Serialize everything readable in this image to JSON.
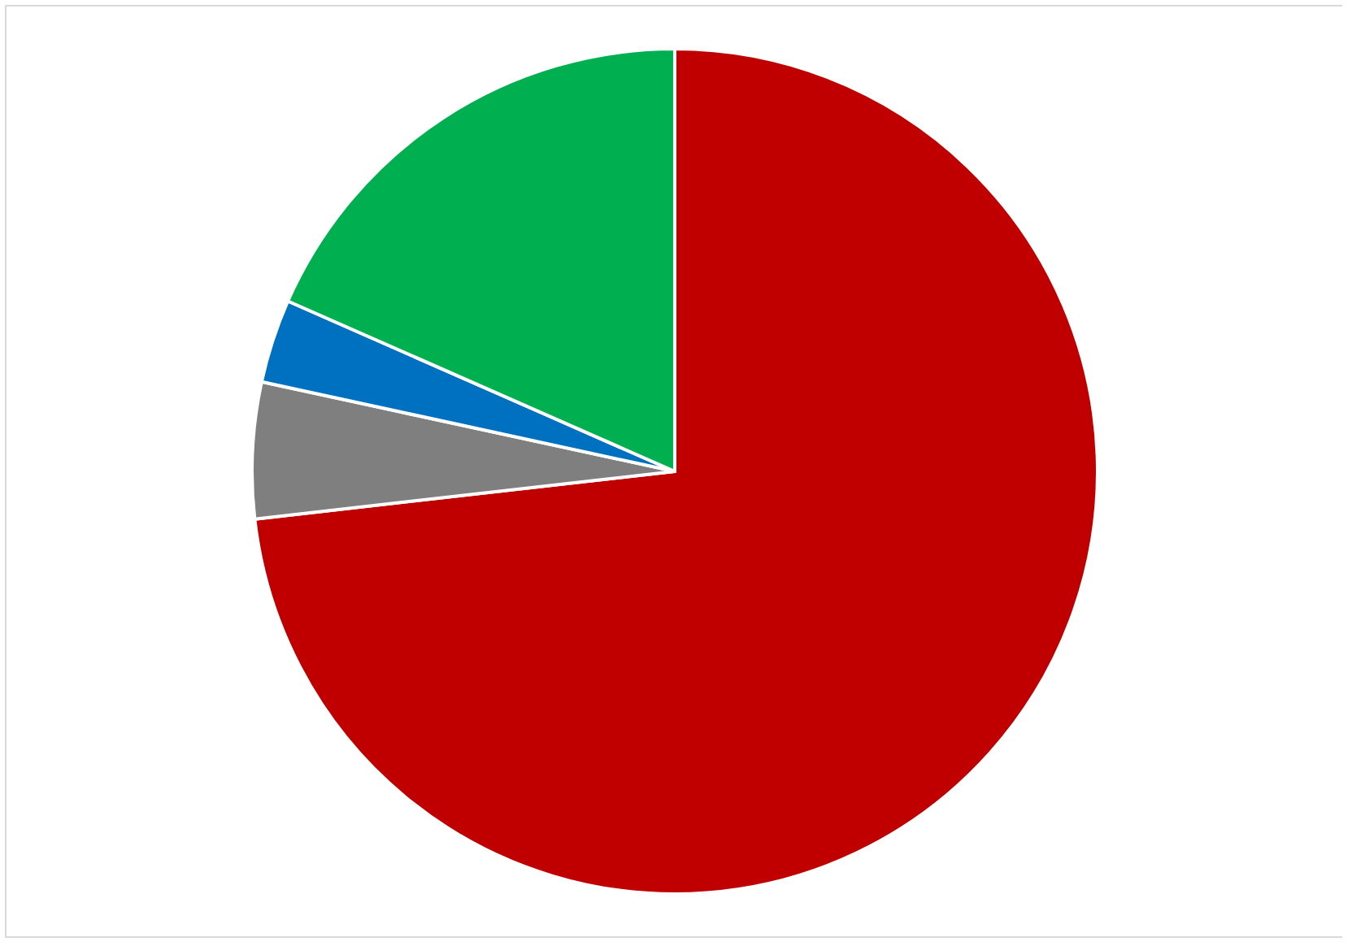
{
  "chart_data": {
    "type": "pie",
    "categories": [
      null,
      null,
      null,
      null
    ],
    "values": [
      73.2,
      5.2,
      3.2,
      18.4
    ],
    "colors": [
      "#c00000",
      "#7f7f7f",
      "#0070c0",
      "#00b050"
    ]
  }
}
